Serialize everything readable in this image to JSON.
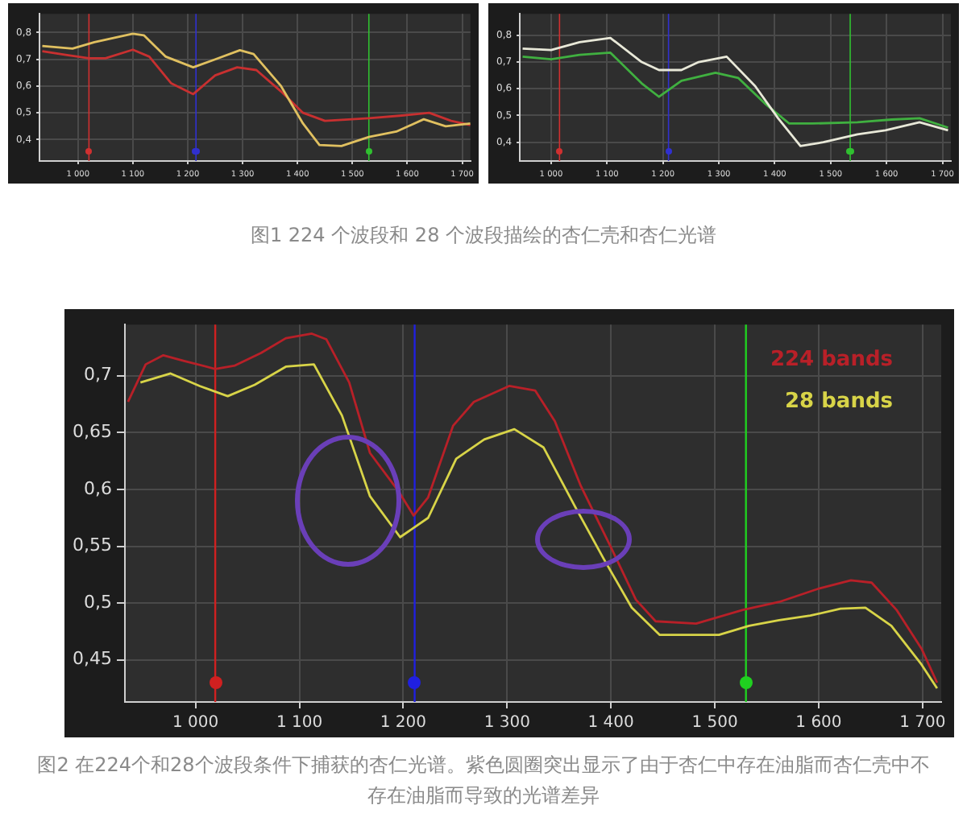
{
  "chart_data": [
    {
      "type": "line",
      "annotations": [
        "图1 224 个波段和 28 个波段描绘的杏仁壳和杏仁光谱"
      ],
      "xlim": [
        930,
        1715
      ],
      "ylim": [
        0.32,
        0.87
      ],
      "xticks": [
        {
          "value": 1000,
          "label": "1 000"
        },
        {
          "value": 1100,
          "label": "1 100"
        },
        {
          "value": 1200,
          "label": "1 200"
        },
        {
          "value": 1300,
          "label": "1 300"
        },
        {
          "value": 1400,
          "label": "1 400"
        },
        {
          "value": 1500,
          "label": "1 500"
        },
        {
          "value": 1600,
          "label": "1 600"
        },
        {
          "value": 1700,
          "label": "1 700"
        }
      ],
      "yticks": [
        {
          "value": 0.4,
          "label": "0,4"
        },
        {
          "value": 0.5,
          "label": "0,5"
        },
        {
          "value": 0.6,
          "label": "0,6"
        },
        {
          "value": 0.7,
          "label": "0,7"
        },
        {
          "value": 0.8,
          "label": "0,8"
        }
      ],
      "grid": true,
      "legend": false,
      "series": [
        {
          "color": "#e0c060",
          "x": [
            935,
            990,
            1030,
            1100,
            1120,
            1160,
            1210,
            1250,
            1295,
            1320,
            1370,
            1410,
            1440,
            1480,
            1530,
            1580,
            1630,
            1670,
            1715
          ],
          "values": [
            0.75,
            0.74,
            0.764,
            0.796,
            0.79,
            0.71,
            0.67,
            0.7,
            0.734,
            0.72,
            0.6,
            0.46,
            0.38,
            0.376,
            0.41,
            0.43,
            0.476,
            0.45,
            0.46
          ]
        },
        {
          "color": "#c83030",
          "x": [
            935,
            980,
            1020,
            1050,
            1100,
            1130,
            1170,
            1210,
            1250,
            1290,
            1325,
            1370,
            1410,
            1450,
            1530,
            1590,
            1640,
            1680,
            1715
          ],
          "values": [
            0.73,
            0.716,
            0.704,
            0.704,
            0.736,
            0.71,
            0.61,
            0.57,
            0.64,
            0.67,
            0.66,
            0.58,
            0.5,
            0.47,
            0.48,
            0.49,
            0.5,
            0.47,
            0.454
          ]
        }
      ],
      "ref_lines": [
        {
          "axis": "x",
          "value": 1020,
          "color": "#d03030"
        },
        {
          "axis": "x",
          "value": 1215,
          "color": "#3030d0"
        },
        {
          "axis": "x",
          "value": 1530,
          "color": "#30c030"
        }
      ]
    },
    {
      "type": "line",
      "xlim": [
        944,
        1715
      ],
      "ylim": [
        0.33,
        0.88
      ],
      "xticks": [
        {
          "value": 1000,
          "label": "1 000"
        },
        {
          "value": 1100,
          "label": "1 100"
        },
        {
          "value": 1200,
          "label": "1 200"
        },
        {
          "value": 1300,
          "label": "1 300"
        },
        {
          "value": 1400,
          "label": "1 400"
        },
        {
          "value": 1500,
          "label": "1 500"
        },
        {
          "value": 1600,
          "label": "1 600"
        },
        {
          "value": 1700,
          "label": "1 700"
        }
      ],
      "yticks": [
        {
          "value": 0.4,
          "label": "0,4"
        },
        {
          "value": 0.5,
          "label": "0,5"
        },
        {
          "value": 0.6,
          "label": "0,6"
        },
        {
          "value": 0.7,
          "label": "0,7"
        },
        {
          "value": 0.8,
          "label": "0,8"
        }
      ],
      "grid": true,
      "legend": false,
      "series": [
        {
          "color": "#e8e8d8",
          "x": [
            949,
            1000,
            1051,
            1106,
            1162,
            1193,
            1233,
            1264,
            1314,
            1365,
            1406,
            1446,
            1487,
            1548,
            1598,
            1659,
            1710
          ],
          "values": [
            0.75,
            0.745,
            0.774,
            0.79,
            0.7,
            0.67,
            0.67,
            0.7,
            0.72,
            0.61,
            0.49,
            0.386,
            0.4,
            0.43,
            0.445,
            0.475,
            0.445
          ]
        },
        {
          "color": "#40b040",
          "x": [
            949,
            1000,
            1051,
            1106,
            1162,
            1193,
            1233,
            1294,
            1335,
            1385,
            1426,
            1467,
            1548,
            1609,
            1659,
            1710
          ],
          "values": [
            0.72,
            0.71,
            0.727,
            0.735,
            0.62,
            0.57,
            0.63,
            0.66,
            0.64,
            0.54,
            0.47,
            0.47,
            0.475,
            0.485,
            0.49,
            0.455
          ]
        }
      ],
      "ref_lines": [
        {
          "axis": "x",
          "value": 1015,
          "color": "#d03030"
        },
        {
          "axis": "x",
          "value": 1210,
          "color": "#3030d0"
        },
        {
          "axis": "x",
          "value": 1535,
          "color": "#30c030"
        }
      ]
    },
    {
      "type": "line",
      "annotations": [
        "图2 在224个和28个波段条件下捕获的杏仁光谱。紫色圆圈突出显示了由于杏仁中存在油脂而杏仁壳中不存在油脂而导致的光谱差异"
      ],
      "xlim": [
        932,
        1718
      ],
      "ylim": [
        0.413,
        0.745
      ],
      "xticks": [
        {
          "value": 1000,
          "label": "1 000"
        },
        {
          "value": 1100,
          "label": "1 100"
        },
        {
          "value": 1200,
          "label": "1 200"
        },
        {
          "value": 1300,
          "label": "1 300"
        },
        {
          "value": 1400,
          "label": "1 400"
        },
        {
          "value": 1500,
          "label": "1 500"
        },
        {
          "value": 1600,
          "label": "1 600"
        },
        {
          "value": 1700,
          "label": "1 700"
        }
      ],
      "yticks": [
        {
          "value": 0.45,
          "label": "0,45"
        },
        {
          "value": 0.5,
          "label": "0,5"
        },
        {
          "value": 0.55,
          "label": "0,55"
        },
        {
          "value": 0.6,
          "label": "0,6"
        },
        {
          "value": 0.65,
          "label": "0,65"
        },
        {
          "value": 0.7,
          "label": "0,7"
        }
      ],
      "grid": true,
      "legend": "top right",
      "series": [
        {
          "name": "224 bands",
          "color": "#b82028",
          "x": [
            935,
            952,
            969,
            989,
            1019,
            1038,
            1063,
            1087,
            1112,
            1126,
            1148,
            1168,
            1195,
            1210,
            1224,
            1248,
            1268,
            1302,
            1327,
            1346,
            1371,
            1400,
            1424,
            1443,
            1482,
            1527,
            1562,
            1601,
            1631,
            1651,
            1675,
            1699,
            1714
          ],
          "values": [
            0.677,
            0.71,
            0.718,
            0.713,
            0.706,
            0.709,
            0.72,
            0.733,
            0.737,
            0.732,
            0.694,
            0.632,
            0.599,
            0.577,
            0.593,
            0.656,
            0.677,
            0.691,
            0.687,
            0.66,
            0.603,
            0.549,
            0.503,
            0.484,
            0.482,
            0.494,
            0.501,
            0.513,
            0.52,
            0.518,
            0.494,
            0.46,
            0.43
          ]
        },
        {
          "name": "28 bands",
          "color": "#d8d448",
          "x": [
            947,
            976,
            1004,
            1031,
            1057,
            1087,
            1114,
            1141,
            1168,
            1197,
            1224,
            1251,
            1278,
            1307,
            1335,
            1366,
            1393,
            1420,
            1447,
            1504,
            1533,
            1562,
            1592,
            1621,
            1645,
            1670,
            1699,
            1714
          ],
          "values": [
            0.694,
            0.702,
            0.691,
            0.682,
            0.692,
            0.708,
            0.71,
            0.665,
            0.594,
            0.558,
            0.575,
            0.627,
            0.644,
            0.653,
            0.637,
            0.584,
            0.539,
            0.496,
            0.472,
            0.472,
            0.48,
            0.485,
            0.489,
            0.495,
            0.496,
            0.48,
            0.446,
            0.425
          ]
        }
      ],
      "ref_lines": [
        {
          "axis": "x",
          "value": 1019,
          "color": "#d02020"
        },
        {
          "axis": "x",
          "value": 1211,
          "color": "#2020e0"
        },
        {
          "axis": "x",
          "value": 1530,
          "color": "#20d020"
        }
      ]
    }
  ]
}
